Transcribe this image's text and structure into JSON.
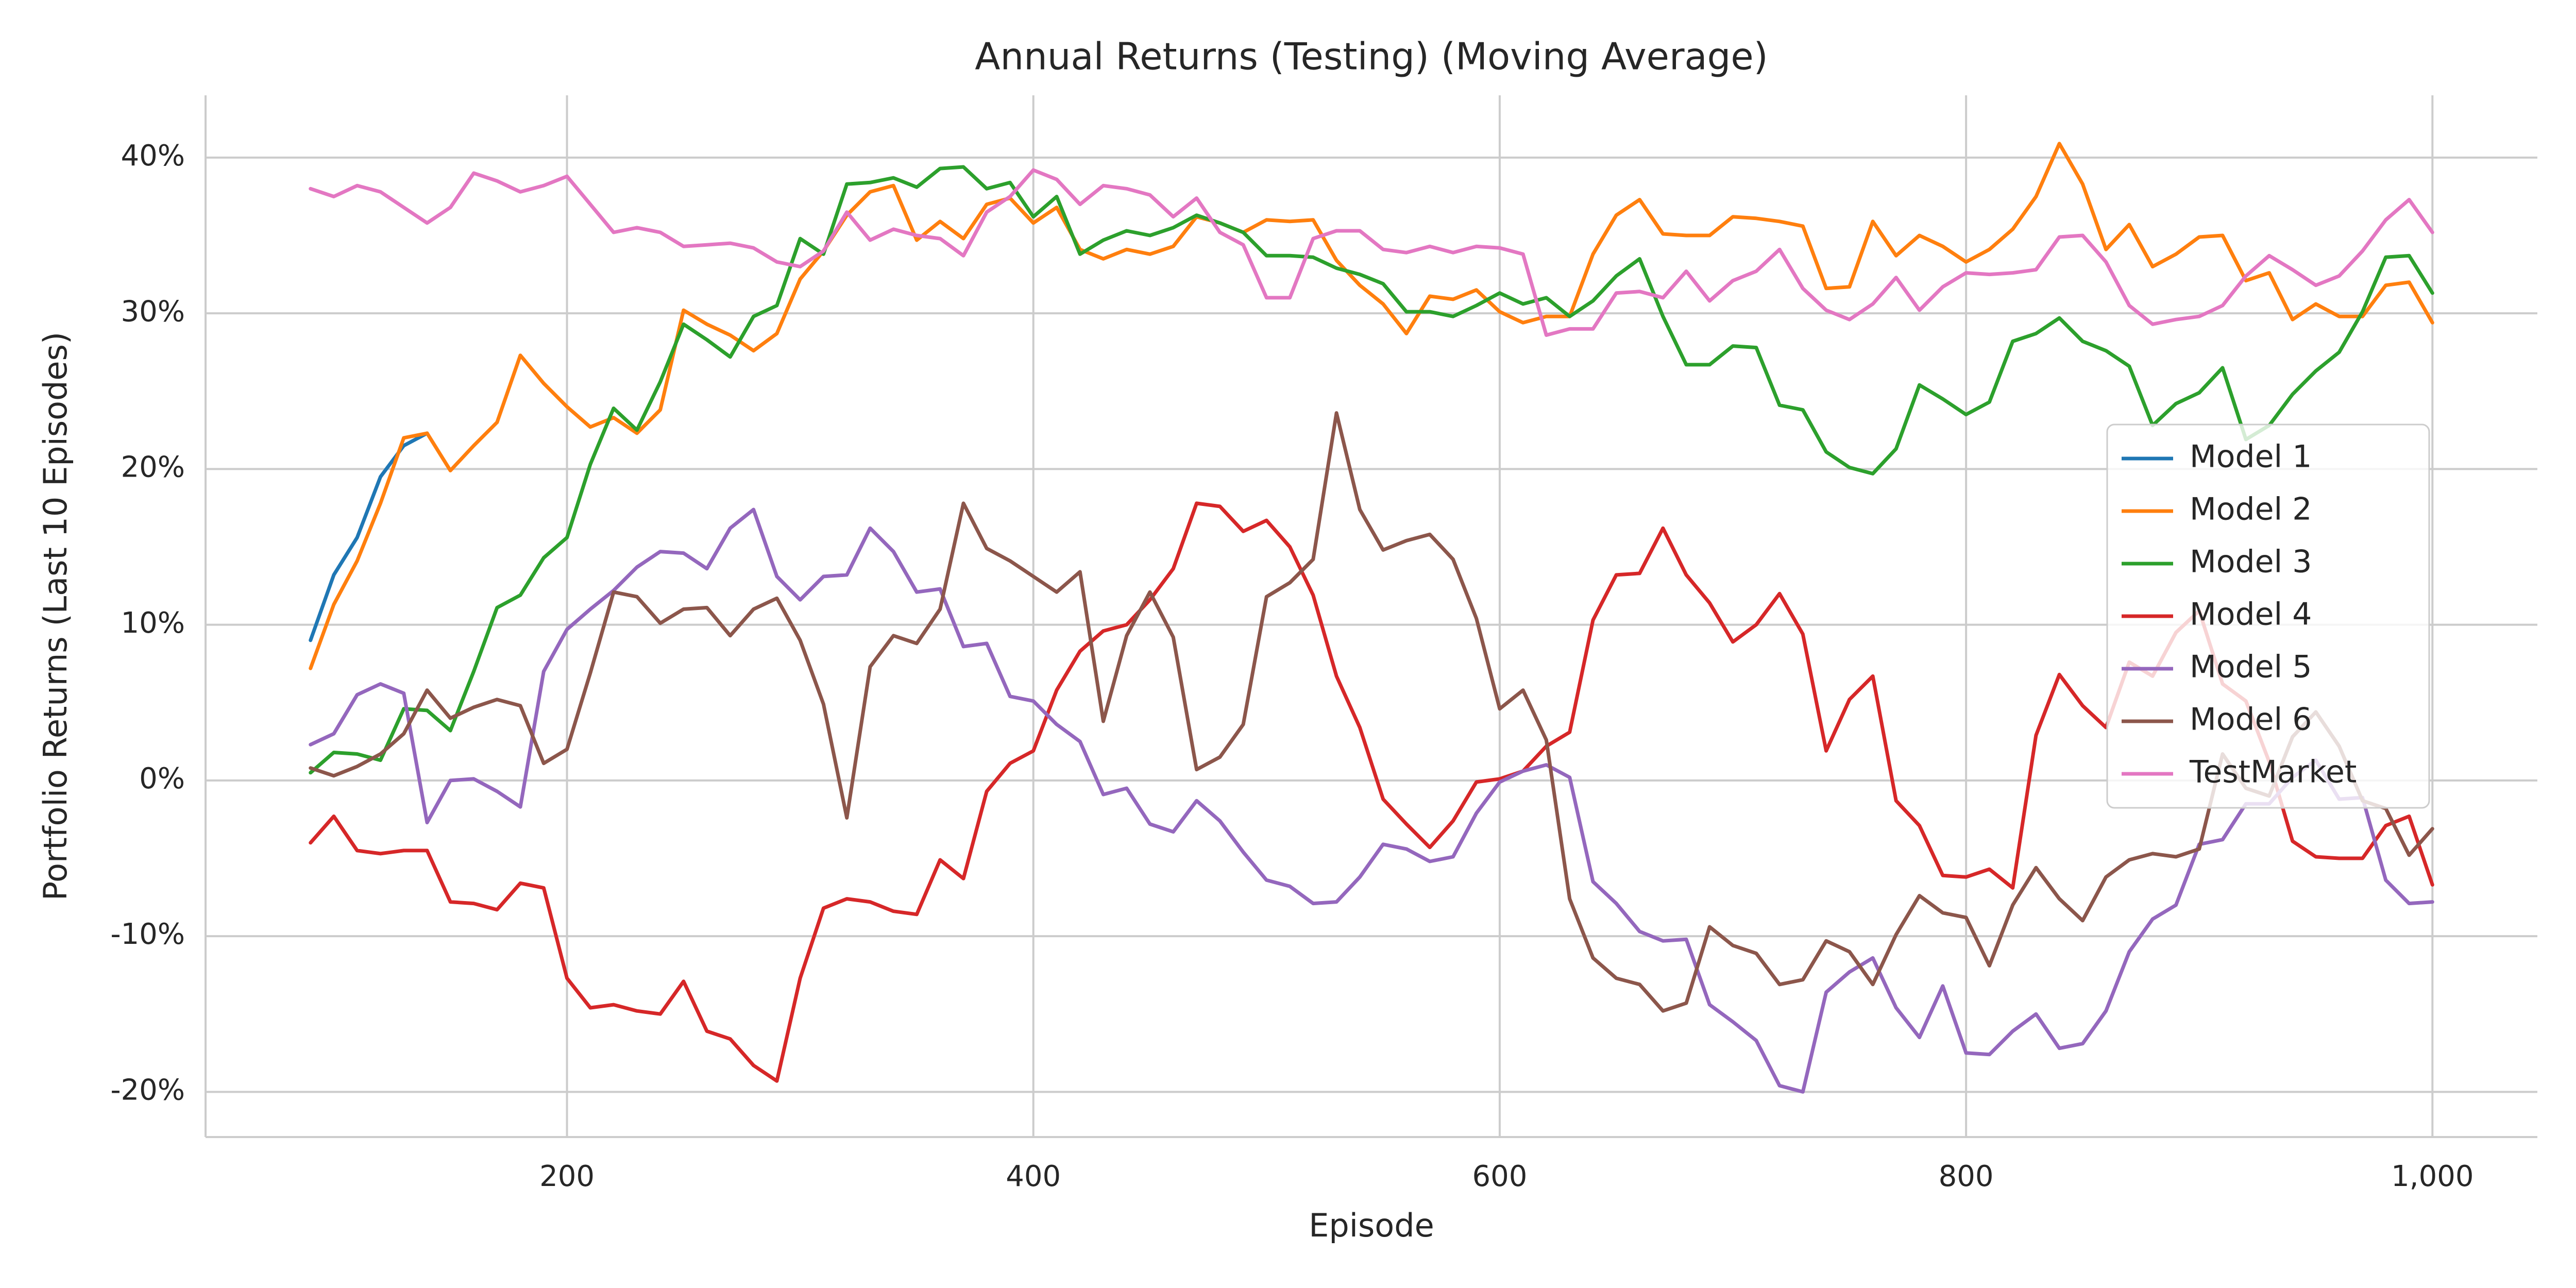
{
  "chart_data": {
    "type": "line",
    "title": "Annual Returns (Testing) (Moving Average)",
    "x_label": "Episode",
    "y_label": "Portfolio Returns (Last 10 Episodes)",
    "x": [
      90,
      100,
      110,
      120,
      130,
      140,
      150,
      160,
      170,
      180,
      190,
      200,
      210,
      220,
      230,
      240,
      250,
      260,
      270,
      280,
      290,
      300,
      310,
      320,
      330,
      340,
      350,
      360,
      370,
      380,
      390,
      400,
      410,
      420,
      430,
      440,
      450,
      460,
      470,
      480,
      490,
      500,
      510,
      520,
      530,
      540,
      550,
      560,
      570,
      580,
      590,
      600,
      610,
      620,
      630,
      640,
      650,
      660,
      670,
      680,
      690,
      700,
      710,
      720,
      730,
      740,
      750,
      760,
      770,
      780,
      790,
      800,
      810,
      820,
      830,
      840,
      850,
      860,
      870,
      880,
      890,
      900,
      910,
      920,
      930,
      940,
      950,
      960,
      970,
      980,
      990,
      1000
    ],
    "xlim": [
      45,
      1045
    ],
    "xticks": [
      200,
      400,
      600,
      800,
      {
        "value": 1000,
        "label": "1,000"
      }
    ],
    "ylim": [
      -22.9,
      44
    ],
    "yticks": [
      {
        "value": -20,
        "label": "-20%"
      },
      {
        "value": -10,
        "label": "-10%"
      },
      {
        "value": 0,
        "label": "0%"
      },
      {
        "value": 10,
        "label": "10%"
      },
      {
        "value": 20,
        "label": "20%"
      },
      {
        "value": 30,
        "label": "30%"
      },
      {
        "value": 40,
        "label": "40%"
      }
    ],
    "grid": true,
    "legend": "right",
    "series": [
      {
        "name": "Model 1",
        "color": "#1f77b4",
        "values": [
          9,
          13.2,
          15.6,
          19.5,
          21.5,
          22.3,
          null,
          null,
          null,
          null,
          null,
          null,
          null,
          null,
          null,
          null,
          null,
          null,
          null,
          null,
          null,
          null,
          null,
          null,
          null,
          null,
          null,
          null,
          null,
          null,
          null,
          null,
          null,
          null,
          null,
          null,
          null,
          null,
          null,
          null,
          null,
          null,
          null,
          null,
          null,
          null,
          null,
          null,
          null,
          null,
          null,
          null,
          null,
          null,
          null,
          null,
          null,
          null,
          null,
          null,
          null,
          null,
          null,
          null,
          null,
          null,
          null,
          null,
          null,
          null,
          null,
          null,
          null,
          null,
          null,
          null,
          null,
          null,
          null,
          null,
          null,
          null,
          null,
          null,
          null,
          null,
          null,
          null,
          null,
          null,
          null,
          null
        ]
      },
      {
        "name": "Model 2",
        "color": "#ff7f0e",
        "values": [
          7.2,
          11.3,
          14.1,
          17.8,
          22,
          22.3,
          19.9,
          21.5,
          23,
          27.3,
          25.5,
          24,
          22.7,
          23.3,
          22.3,
          23.8,
          30.2,
          29.3,
          28.6,
          27.6,
          28.7,
          32.2,
          34,
          36.3,
          37.8,
          38.2,
          34.7,
          35.9,
          34.8,
          37,
          37.4,
          35.8,
          36.8,
          34.1,
          33.5,
          34.1,
          33.8,
          34.3,
          36.2,
          35.8,
          35.2,
          36,
          35.9,
          36,
          33.4,
          31.8,
          30.6,
          28.7,
          31.1,
          30.9,
          31.5,
          30.1,
          29.4,
          29.8,
          29.8,
          33.8,
          36.3,
          37.3,
          35.1,
          35,
          35,
          36.2,
          36.1,
          35.9,
          35.6,
          31.6,
          31.7,
          35.9,
          33.7,
          35,
          34.3,
          33.3,
          34.1,
          35.4,
          37.5,
          40.9,
          38.3,
          34.1,
          35.7,
          33,
          33.8,
          34.9,
          35,
          32.1,
          32.6,
          29.6,
          30.6,
          29.8,
          29.8,
          31.8,
          32,
          29.4
        ]
      },
      {
        "name": "Model 3",
        "color": "#2ca02c",
        "values": [
          0.5,
          1.8,
          1.7,
          1.3,
          4.6,
          4.5,
          3.2,
          7,
          11.1,
          11.9,
          14.3,
          15.6,
          20.3,
          23.9,
          22.5,
          25.6,
          29.3,
          28.3,
          27.2,
          29.8,
          30.5,
          34.8,
          33.8,
          38.3,
          38.4,
          38.7,
          38.1,
          39.3,
          39.4,
          38,
          38.4,
          36.2,
          37.5,
          33.8,
          34.7,
          35.3,
          35,
          35.5,
          36.3,
          35.8,
          35.2,
          33.7,
          33.7,
          33.6,
          32.9,
          32.5,
          31.9,
          30.1,
          30.1,
          29.8,
          30.5,
          31.3,
          30.6,
          31,
          29.8,
          30.8,
          32.4,
          33.5,
          29.8,
          26.7,
          26.7,
          27.9,
          27.8,
          24.1,
          23.8,
          21.1,
          20.1,
          19.7,
          21.3,
          25.4,
          24.5,
          23.5,
          24.3,
          28.2,
          28.7,
          29.7,
          28.2,
          27.6,
          26.6,
          22.8,
          24.2,
          24.9,
          26.5,
          21.9,
          22.8,
          24.8,
          26.3,
          27.5,
          30.1,
          33.6,
          33.7,
          31.3
        ]
      },
      {
        "name": "Model 4",
        "color": "#d62728",
        "values": [
          -4,
          -2.3,
          -4.5,
          -4.7,
          -4.5,
          -4.5,
          -7.8,
          -7.9,
          -8.3,
          -6.6,
          -6.9,
          -12.7,
          -14.6,
          -14.4,
          -14.8,
          -15,
          -12.9,
          -16.1,
          -16.6,
          -18.3,
          -19.3,
          -12.7,
          -8.2,
          -7.6,
          -7.8,
          -8.4,
          -8.6,
          -5.1,
          -6.3,
          -0.7,
          1.1,
          1.9,
          5.8,
          8.3,
          9.6,
          10,
          11.6,
          13.6,
          17.8,
          17.6,
          16,
          16.7,
          15,
          11.9,
          6.7,
          3.4,
          -1.2,
          -2.8,
          -4.3,
          -2.6,
          -0.1,
          0.1,
          0.6,
          2.2,
          3.1,
          10.3,
          13.2,
          13.3,
          16.2,
          13.2,
          11.4,
          8.9,
          10,
          12,
          9.4,
          1.9,
          5.2,
          6.7,
          -1.3,
          -2.9,
          -6.1,
          -6.2,
          -5.7,
          -6.9,
          2.9,
          6.8,
          4.8,
          3.4,
          7.6,
          6.7,
          9.5,
          10.9,
          6.2,
          5.1,
          1.2,
          -3.9,
          -4.9,
          -5,
          -5,
          -2.9,
          -2.3,
          -6.7
        ]
      },
      {
        "name": "Model 5",
        "color": "#9467bd",
        "values": [
          2.3,
          3,
          5.5,
          6.2,
          5.6,
          -2.7,
          0,
          0.1,
          -0.7,
          -1.7,
          7,
          9.7,
          11,
          12.2,
          13.7,
          14.7,
          14.6,
          13.6,
          16.2,
          17.4,
          13.1,
          11.6,
          13.1,
          13.2,
          16.2,
          14.7,
          12.1,
          12.3,
          8.6,
          8.8,
          5.4,
          5.1,
          3.6,
          2.5,
          -0.9,
          -0.5,
          -2.8,
          -3.3,
          -1.3,
          -2.6,
          -4.6,
          -6.4,
          -6.8,
          -7.9,
          -7.8,
          -6.2,
          -4.1,
          -4.4,
          -5.2,
          -4.9,
          -2.1,
          -0.1,
          0.6,
          1,
          0.2,
          -6.5,
          -7.9,
          -9.7,
          -10.3,
          -10.2,
          -14.4,
          -15.5,
          -16.7,
          -19.6,
          -20,
          -13.6,
          -12.3,
          -11.4,
          -14.6,
          -16.5,
          -13.2,
          -17.5,
          -17.6,
          -16.1,
          -15,
          -17.2,
          -16.9,
          -14.8,
          -11,
          -8.9,
          -8,
          -4.1,
          -3.8,
          -1.5,
          -1.5,
          0.2,
          1.3,
          -1.2,
          -1.1,
          -6.4,
          -7.9,
          -7.8
        ]
      },
      {
        "name": "Model 6",
        "color": "#8c564b",
        "values": [
          0.8,
          0.3,
          0.9,
          1.7,
          3,
          5.8,
          4,
          4.7,
          5.2,
          4.8,
          1.1,
          2,
          6.9,
          12.1,
          11.8,
          10.1,
          11,
          11.1,
          9.3,
          11,
          11.7,
          9,
          4.9,
          -2.4,
          7.3,
          9.3,
          8.8,
          11,
          17.8,
          14.9,
          14.1,
          13.1,
          12.1,
          13.4,
          3.8,
          9.3,
          12.1,
          9.2,
          0.7,
          1.5,
          3.6,
          11.8,
          12.7,
          14.2,
          23.6,
          17.4,
          14.8,
          15.4,
          15.8,
          14.2,
          10.4,
          4.6,
          5.8,
          2.6,
          -7.6,
          -11.4,
          -12.7,
          -13.1,
          -14.8,
          -14.3,
          -9.4,
          -10.6,
          -11.1,
          -13.1,
          -12.8,
          -10.3,
          -11,
          -13.1,
          -9.9,
          -7.4,
          -8.5,
          -8.8,
          -11.9,
          -8,
          -5.6,
          -7.6,
          -9,
          -6.2,
          -5.1,
          -4.7,
          -4.9,
          -4.4,
          1.7,
          -0.5,
          -1,
          2.8,
          4.4,
          2.2,
          -1.3,
          -1.8,
          -4.8,
          -3.1
        ]
      },
      {
        "name": "TestMarket",
        "color": "#e377c2",
        "values": [
          38,
          37.5,
          38.2,
          37.8,
          36.8,
          35.8,
          36.8,
          39,
          38.5,
          37.8,
          38.2,
          38.8,
          37,
          35.2,
          35.5,
          35.2,
          34.3,
          34.4,
          34.5,
          34.2,
          33.3,
          33,
          34,
          36.5,
          34.7,
          35.4,
          35,
          34.8,
          33.7,
          36.5,
          37.5,
          39.2,
          38.6,
          37,
          38.2,
          38,
          37.6,
          36.2,
          37.4,
          35.2,
          34.4,
          31,
          31,
          34.8,
          35.3,
          35.3,
          34.1,
          33.9,
          34.3,
          33.9,
          34.3,
          34.2,
          33.8,
          28.6,
          29,
          29,
          31.3,
          31.4,
          31,
          32.7,
          30.8,
          32.1,
          32.7,
          34.1,
          31.6,
          30.2,
          29.6,
          30.6,
          32.3,
          30.2,
          31.7,
          32.6,
          32.5,
          32.6,
          32.8,
          34.9,
          35,
          33.3,
          30.5,
          29.3,
          29.6,
          29.8,
          30.5,
          32.4,
          33.7,
          32.8,
          31.8,
          32.4,
          34,
          36,
          37.3,
          35.2
        ]
      }
    ]
  }
}
